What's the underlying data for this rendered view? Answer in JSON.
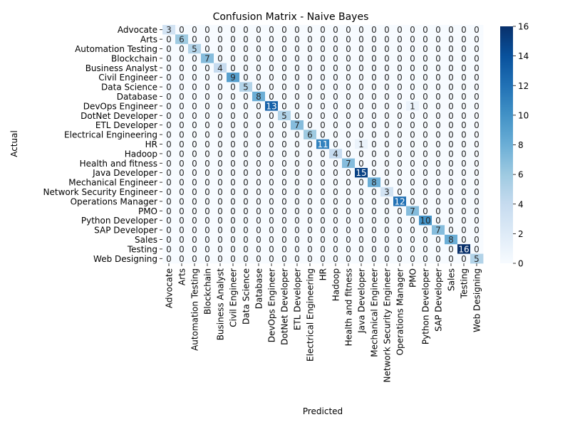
{
  "chart_data": {
    "type": "heatmap",
    "title": "Confusion Matrix - Naive Bayes",
    "xlabel": "Predicted",
    "ylabel": "Actual",
    "labels": [
      "Advocate",
      "Arts",
      "Automation Testing",
      "Blockchain",
      "Business Analyst",
      "Civil Engineer",
      "Data Science",
      "Database",
      "DevOps Engineer",
      "DotNet Developer",
      "ETL Developer",
      "Electrical Engineering",
      "HR",
      "Hadoop",
      "Health and fitness",
      "Java Developer",
      "Mechanical Engineer",
      "Network Security Engineer",
      "Operations Manager",
      "PMO",
      "Python Developer",
      "SAP Developer",
      "Sales",
      "Testing",
      "Web Designing"
    ],
    "diagonal": [
      3,
      6,
      5,
      7,
      4,
      9,
      5,
      8,
      13,
      5,
      7,
      6,
      11,
      4,
      7,
      15,
      8,
      3,
      12,
      7,
      10,
      7,
      8,
      16,
      5
    ],
    "off_diagonal": [
      {
        "row": 8,
        "col": 19,
        "value": 1
      },
      {
        "row": 12,
        "col": 15,
        "value": 1
      }
    ],
    "colorbar": {
      "min": 0,
      "max": 16,
      "ticks": [
        0,
        2,
        4,
        6,
        8,
        10,
        12,
        14,
        16
      ],
      "colormap": "Blues"
    }
  }
}
